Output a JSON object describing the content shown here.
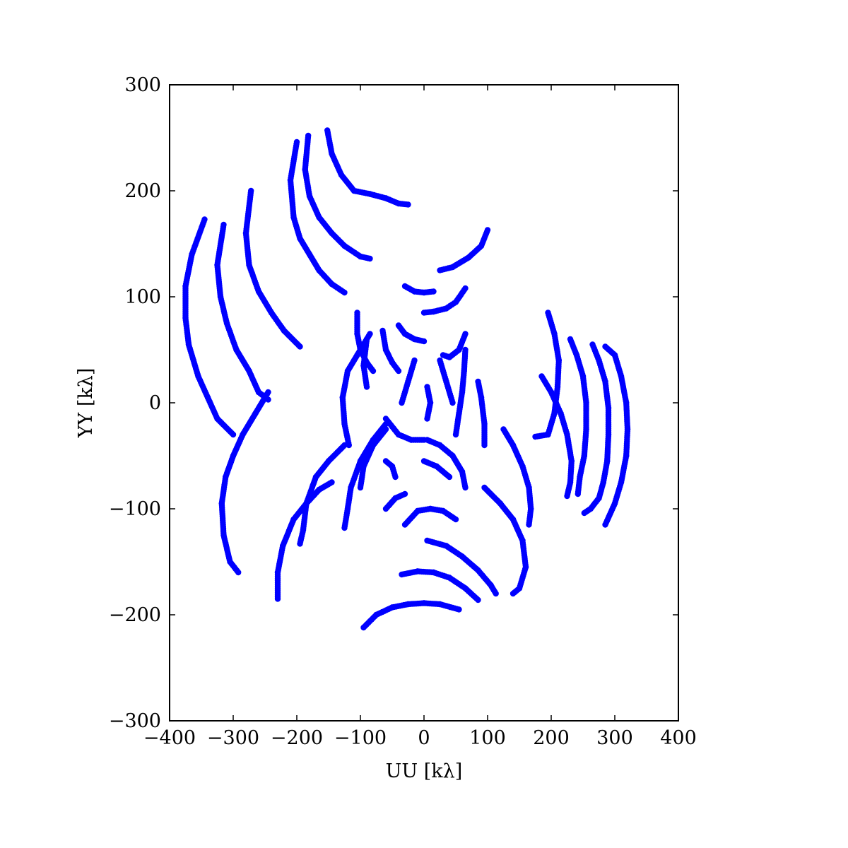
{
  "chart_data": {
    "type": "scatter",
    "title": "",
    "xlabel": "UU [kλ]",
    "ylabel": "YY [kλ]",
    "xlim": [
      -400,
      400
    ],
    "ylim": [
      -300,
      300
    ],
    "xticks": [
      -400,
      -300,
      -200,
      -100,
      0,
      100,
      200,
      300,
      400
    ],
    "yticks": [
      -300,
      -200,
      -100,
      0,
      100,
      200,
      300
    ],
    "xtick_labels": [
      "−400",
      "−300",
      "−200",
      "−100",
      "0",
      "100",
      "200",
      "300",
      "400"
    ],
    "ytick_labels": [
      "−300",
      "−200",
      "−100",
      "0",
      "100",
      "200",
      "300"
    ],
    "grid": false,
    "marker_color": "#0000ff",
    "tracks": [
      [
        [
          -152,
          257
        ],
        [
          -145,
          235
        ],
        [
          -130,
          215
        ],
        [
          -110,
          200
        ],
        [
          -85,
          197
        ],
        [
          -60,
          193
        ],
        [
          -40,
          188
        ],
        [
          -25,
          187
        ]
      ],
      [
        [
          -182,
          252
        ],
        [
          -187,
          220
        ],
        [
          -180,
          195
        ],
        [
          -165,
          175
        ],
        [
          -145,
          160
        ],
        [
          -125,
          148
        ],
        [
          -100,
          138
        ],
        [
          -85,
          136
        ]
      ],
      [
        [
          -200,
          246
        ],
        [
          -210,
          210
        ],
        [
          -205,
          175
        ],
        [
          -195,
          155
        ],
        [
          -180,
          140
        ],
        [
          -165,
          125
        ],
        [
          -145,
          112
        ],
        [
          -125,
          104
        ]
      ],
      [
        [
          -272,
          200
        ],
        [
          -280,
          160
        ],
        [
          -275,
          130
        ],
        [
          -260,
          105
        ],
        [
          -240,
          85
        ],
        [
          -220,
          68
        ],
        [
          -195,
          53
        ]
      ],
      [
        [
          -315,
          168
        ],
        [
          -325,
          130
        ],
        [
          -320,
          100
        ],
        [
          -310,
          75
        ],
        [
          -295,
          50
        ],
        [
          -275,
          30
        ],
        [
          -260,
          10
        ],
        [
          -245,
          3
        ]
      ],
      [
        [
          -345,
          173
        ],
        [
          -365,
          140
        ],
        [
          -375,
          110
        ],
        [
          -375,
          80
        ],
        [
          -370,
          55
        ],
        [
          -355,
          25
        ],
        [
          -340,
          5
        ],
        [
          -325,
          -15
        ],
        [
          -300,
          -30
        ]
      ],
      [
        [
          -245,
          10
        ],
        [
          -265,
          -10
        ],
        [
          -285,
          -30
        ],
        [
          -300,
          -50
        ],
        [
          -312,
          -70
        ],
        [
          -318,
          -95
        ],
        [
          -315,
          -125
        ],
        [
          -305,
          -150
        ],
        [
          -292,
          -160
        ]
      ],
      [
        [
          100,
          163
        ],
        [
          90,
          148
        ],
        [
          70,
          137
        ],
        [
          45,
          128
        ],
        [
          25,
          125
        ]
      ],
      [
        [
          -30,
          110
        ],
        [
          -15,
          105
        ],
        [
          0,
          104
        ],
        [
          15,
          105
        ]
      ],
      [
        [
          65,
          108
        ],
        [
          50,
          95
        ],
        [
          35,
          89
        ],
        [
          15,
          86
        ],
        [
          0,
          85
        ]
      ],
      [
        [
          -40,
          73
        ],
        [
          -30,
          65
        ],
        [
          -15,
          60
        ],
        [
          0,
          58
        ]
      ],
      [
        [
          65,
          65
        ],
        [
          55,
          50
        ],
        [
          40,
          43
        ],
        [
          30,
          45
        ]
      ],
      [
        [
          -105,
          85
        ],
        [
          -105,
          65
        ],
        [
          -100,
          50
        ],
        [
          -90,
          38
        ],
        [
          -80,
          30
        ]
      ],
      [
        [
          -85,
          65
        ],
        [
          -105,
          45
        ],
        [
          -120,
          30
        ],
        [
          -128,
          5
        ],
        [
          -125,
          -20
        ],
        [
          -118,
          -40
        ]
      ],
      [
        [
          -65,
          68
        ],
        [
          -60,
          50
        ],
        [
          -50,
          38
        ],
        [
          -40,
          30
        ]
      ],
      [
        [
          -90,
          60
        ],
        [
          -95,
          35
        ],
        [
          -90,
          15
        ]
      ],
      [
        [
          -15,
          40
        ],
        [
          -25,
          20
        ],
        [
          -35,
          0
        ]
      ],
      [
        [
          5,
          15
        ],
        [
          10,
          0
        ],
        [
          5,
          -15
        ]
      ],
      [
        [
          65,
          50
        ],
        [
          63,
          30
        ],
        [
          60,
          10
        ],
        [
          55,
          -10
        ],
        [
          50,
          -30
        ]
      ],
      [
        [
          25,
          40
        ],
        [
          35,
          20
        ],
        [
          45,
          0
        ]
      ],
      [
        [
          85,
          20
        ],
        [
          90,
          5
        ],
        [
          95,
          -20
        ],
        [
          95,
          -40
        ]
      ],
      [
        [
          -60,
          -20
        ],
        [
          -80,
          -35
        ],
        [
          -100,
          -55
        ],
        [
          -115,
          -80
        ],
        [
          -120,
          -100
        ],
        [
          -125,
          -118
        ]
      ],
      [
        [
          -100,
          -80
        ],
        [
          -95,
          -60
        ],
        [
          -80,
          -40
        ],
        [
          -60,
          -25
        ]
      ],
      [
        [
          -60,
          -100
        ],
        [
          -45,
          -90
        ],
        [
          -30,
          -86
        ]
      ],
      [
        [
          -30,
          -115
        ],
        [
          -10,
          -102
        ],
        [
          10,
          -100
        ],
        [
          30,
          -102
        ],
        [
          50,
          -110
        ]
      ],
      [
        [
          -60,
          -55
        ],
        [
          -50,
          -60
        ],
        [
          -45,
          -70
        ]
      ],
      [
        [
          -60,
          -15
        ],
        [
          -40,
          -30
        ],
        [
          -20,
          -35
        ],
        [
          0,
          -35
        ]
      ],
      [
        [
          5,
          -35
        ],
        [
          25,
          -40
        ],
        [
          45,
          -50
        ],
        [
          60,
          -65
        ],
        [
          65,
          -80
        ]
      ],
      [
        [
          0,
          -55
        ],
        [
          20,
          -60
        ],
        [
          40,
          -70
        ]
      ],
      [
        [
          -125,
          -40
        ],
        [
          -150,
          -55
        ],
        [
          -170,
          -70
        ],
        [
          -185,
          -95
        ],
        [
          -190,
          -120
        ],
        [
          -195,
          -133
        ]
      ],
      [
        [
          -230,
          -185
        ],
        [
          -230,
          -160
        ],
        [
          -222,
          -135
        ],
        [
          -205,
          -110
        ],
        [
          -185,
          -95
        ],
        [
          -165,
          -82
        ],
        [
          -145,
          -75
        ]
      ],
      [
        [
          -95,
          -212
        ],
        [
          -75,
          -200
        ],
        [
          -50,
          -193
        ],
        [
          -25,
          -190
        ],
        [
          0,
          -189
        ],
        [
          25,
          -190
        ],
        [
          55,
          -195
        ]
      ],
      [
        [
          -35,
          -162
        ],
        [
          -10,
          -159
        ],
        [
          15,
          -160
        ],
        [
          40,
          -165
        ],
        [
          65,
          -175
        ],
        [
          85,
          -186
        ]
      ],
      [
        [
          5,
          -130
        ],
        [
          35,
          -135
        ],
        [
          60,
          -145
        ],
        [
          85,
          -158
        ],
        [
          105,
          -172
        ],
        [
          113,
          -180
        ]
      ],
      [
        [
          95,
          -80
        ],
        [
          120,
          -95
        ],
        [
          140,
          -110
        ],
        [
          155,
          -130
        ],
        [
          160,
          -155
        ],
        [
          150,
          -175
        ],
        [
          140,
          -180
        ]
      ],
      [
        [
          125,
          -25
        ],
        [
          140,
          -40
        ],
        [
          155,
          -60
        ],
        [
          165,
          -80
        ],
        [
          168,
          -100
        ],
        [
          165,
          -115
        ]
      ],
      [
        [
          195,
          85
        ],
        [
          205,
          65
        ],
        [
          212,
          40
        ],
        [
          210,
          15
        ],
        [
          205,
          -10
        ],
        [
          195,
          -30
        ],
        [
          175,
          -32
        ]
      ],
      [
        [
          230,
          60
        ],
        [
          240,
          45
        ],
        [
          250,
          25
        ],
        [
          255,
          0
        ],
        [
          255,
          -25
        ],
        [
          252,
          -50
        ],
        [
          245,
          -70
        ],
        [
          242,
          -86
        ]
      ],
      [
        [
          265,
          55
        ],
        [
          275,
          40
        ],
        [
          285,
          20
        ],
        [
          290,
          -5
        ],
        [
          290,
          -30
        ],
        [
          288,
          -55
        ],
        [
          282,
          -75
        ],
        [
          275,
          -90
        ],
        [
          262,
          -100
        ],
        [
          252,
          -104
        ]
      ],
      [
        [
          185,
          25
        ],
        [
          200,
          10
        ],
        [
          215,
          -10
        ],
        [
          225,
          -30
        ],
        [
          232,
          -55
        ],
        [
          230,
          -75
        ],
        [
          225,
          -88
        ]
      ],
      [
        [
          285,
          -115
        ],
        [
          300,
          -95
        ],
        [
          310,
          -75
        ],
        [
          318,
          -50
        ],
        [
          320,
          -25
        ],
        [
          318,
          0
        ],
        [
          310,
          25
        ],
        [
          300,
          45
        ],
        [
          285,
          53
        ]
      ]
    ]
  }
}
